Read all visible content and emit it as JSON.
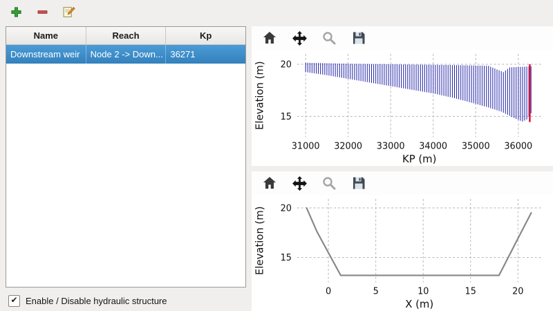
{
  "main_toolbar": {
    "buttons": [
      {
        "icon": "add-icon"
      },
      {
        "icon": "remove-icon"
      },
      {
        "icon": "edit-icon"
      }
    ]
  },
  "structures_table": {
    "columns": [
      "Name",
      "Reach",
      "Kp"
    ],
    "rows": [
      {
        "name": "Downstream weir",
        "reach": "Node 2 -> Down...",
        "kp": "36271",
        "selected": true
      }
    ]
  },
  "enable_checkbox": {
    "label": "Enable / Disable hydraulic structure",
    "checked": true,
    "check_glyph": "✔"
  },
  "plot_toolbar_icons": [
    "home-icon",
    "pan-icon",
    "zoom-icon",
    "save-icon"
  ],
  "colors": {
    "selection_blue": "#3381bd",
    "hatch_blue": "#1c1ca8",
    "marker_red": "#e01030",
    "profile_gray": "#878787",
    "grid_gray": "#b5b5b5"
  },
  "chart_data": [
    {
      "type": "area",
      "style": "vertical-hatch",
      "title": "",
      "xlabel": "KP (m)",
      "ylabel": "Elevation (m)",
      "xlim": [
        30800,
        36550
      ],
      "ylim": [
        13.0,
        21.0
      ],
      "xticks": [
        31000,
        32000,
        33000,
        34000,
        35000,
        36000
      ],
      "yticks": [
        15,
        20
      ],
      "hatch_step": 50,
      "hatch_color": "#1c1ca8",
      "top_profile": [
        [
          31000,
          20.15
        ],
        [
          32000,
          20.05
        ],
        [
          33000,
          20.0
        ],
        [
          34000,
          19.95
        ],
        [
          34800,
          19.9
        ],
        [
          35300,
          19.85
        ],
        [
          35500,
          19.5
        ],
        [
          35650,
          19.25
        ],
        [
          35800,
          19.7
        ],
        [
          36300,
          19.8
        ]
      ],
      "bottom_profile": [
        [
          31000,
          19.25
        ],
        [
          31500,
          18.95
        ],
        [
          32000,
          18.6
        ],
        [
          32500,
          18.25
        ],
        [
          33000,
          17.9
        ],
        [
          33500,
          17.55
        ],
        [
          34000,
          17.2
        ],
        [
          34500,
          16.75
        ],
        [
          35000,
          16.2
        ],
        [
          35300,
          15.85
        ],
        [
          35600,
          15.45
        ],
        [
          35800,
          15.05
        ],
        [
          35950,
          14.75
        ],
        [
          36100,
          14.5
        ],
        [
          36200,
          14.7
        ],
        [
          36300,
          15.3
        ]
      ],
      "marker_line": {
        "x": 36271,
        "y0": 14.45,
        "y1": 20.0,
        "color": "#e01030"
      }
    },
    {
      "type": "line",
      "title": "",
      "xlabel": "X (m)",
      "ylabel": "Elevation (m)",
      "xlim": [
        -3.3,
        22.5
      ],
      "ylim": [
        12.5,
        20.9
      ],
      "xticks": [
        0,
        5,
        10,
        15,
        20
      ],
      "yticks": [
        15,
        20
      ],
      "line_color": "#878787",
      "points": [
        [
          -2.3,
          20.0
        ],
        [
          -1.2,
          17.6
        ],
        [
          1.3,
          13.2
        ],
        [
          18.0,
          13.2
        ],
        [
          20.2,
          17.3
        ],
        [
          21.4,
          19.5
        ]
      ]
    }
  ]
}
